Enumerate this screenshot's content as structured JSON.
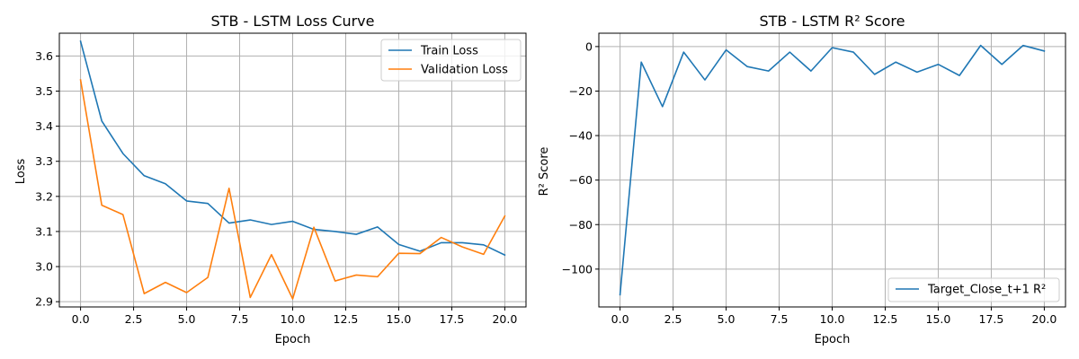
{
  "chart_data": [
    {
      "type": "line",
      "title": "STB - LSTM Loss Curve",
      "xlabel": "Epoch",
      "ylabel": "Loss",
      "xlim": [
        -1,
        21
      ],
      "ylim": [
        2.885,
        3.665
      ],
      "xticks": [
        0.0,
        2.5,
        5.0,
        7.5,
        10.0,
        12.5,
        15.0,
        17.5,
        20.0
      ],
      "xtick_labels": [
        "0.0",
        "2.5",
        "5.0",
        "7.5",
        "10.0",
        "12.5",
        "15.0",
        "17.5",
        "20.0"
      ],
      "yticks": [
        2.9,
        3.0,
        3.1,
        3.2,
        3.3,
        3.4,
        3.5,
        3.6
      ],
      "ytick_labels": [
        "2.9",
        "3.0",
        "3.1",
        "3.2",
        "3.3",
        "3.4",
        "3.5",
        "3.6"
      ],
      "grid": true,
      "legend": "top-right",
      "x": [
        0,
        1,
        2,
        3,
        4,
        5,
        6,
        7,
        8,
        9,
        10,
        11,
        12,
        13,
        14,
        15,
        16,
        17,
        18,
        19,
        20
      ],
      "series": [
        {
          "name": "Train Loss",
          "color": "#1f77b4",
          "values": [
            3.642,
            3.415,
            3.322,
            3.259,
            3.236,
            3.187,
            3.18,
            3.124,
            3.133,
            3.12,
            3.129,
            3.106,
            3.1,
            3.092,
            3.113,
            3.063,
            3.044,
            3.068,
            3.068,
            3.062,
            3.033
          ]
        },
        {
          "name": "Validation Loss",
          "color": "#ff7f0e",
          "values": [
            3.532,
            3.175,
            3.148,
            2.923,
            2.955,
            2.926,
            2.969,
            3.223,
            2.912,
            3.034,
            2.908,
            3.112,
            2.959,
            2.976,
            2.971,
            3.038,
            3.037,
            3.083,
            3.056,
            3.035,
            3.144
          ]
        }
      ]
    },
    {
      "type": "line",
      "title": "STB - LSTM R² Score",
      "xlabel": "Epoch",
      "ylabel": "R² Score",
      "xlim": [
        -1,
        21
      ],
      "ylim": [
        -117,
        6
      ],
      "xticks": [
        0.0,
        2.5,
        5.0,
        7.5,
        10.0,
        12.5,
        15.0,
        17.5,
        20.0
      ],
      "xtick_labels": [
        "0.0",
        "2.5",
        "5.0",
        "7.5",
        "10.0",
        "12.5",
        "15.0",
        "17.5",
        "20.0"
      ],
      "yticks": [
        -100,
        -80,
        -60,
        -40,
        -20,
        0
      ],
      "ytick_labels": [
        "−100",
        "−80",
        "−60",
        "−40",
        "−20",
        "0"
      ],
      "grid": true,
      "legend": "bottom-right",
      "x": [
        0,
        1,
        2,
        3,
        4,
        5,
        6,
        7,
        8,
        9,
        10,
        11,
        12,
        13,
        14,
        15,
        16,
        17,
        18,
        19,
        20
      ],
      "series": [
        {
          "name": "Target_Close_t+1 R²",
          "color": "#1f77b4",
          "values": [
            -111.5,
            -7.0,
            -27.0,
            -2.5,
            -15.0,
            -1.5,
            -9.0,
            -11.0,
            -2.5,
            -11.0,
            -0.5,
            -2.5,
            -12.5,
            -7.0,
            -11.5,
            -8.0,
            -13.0,
            0.5,
            -8.0,
            0.5,
            -2.0
          ]
        }
      ]
    }
  ]
}
